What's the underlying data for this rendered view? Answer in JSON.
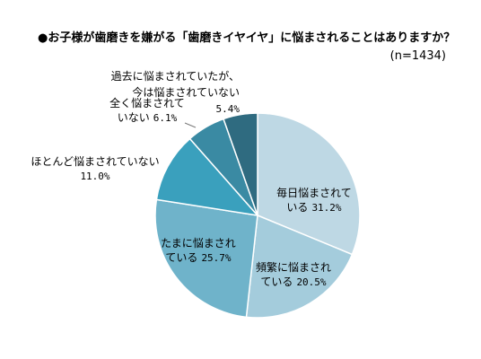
{
  "chart_data": {
    "type": "pie",
    "title": "●お子様が歯磨きを嫌がる「歯磨きイヤイヤ」に悩まされることはありますか？",
    "subtitle": "(n=1434)",
    "start": "12 o'clock, clockwise",
    "slices": [
      {
        "label_lines": [
          "毎日悩まされて",
          "いる"
        ],
        "value_text": "31.2%",
        "value": 31.2,
        "color": "#bed8e4"
      },
      {
        "label_lines": [
          "頻繁に悩まされ",
          "ている"
        ],
        "value_text": "20.5%",
        "value": 20.5,
        "color": "#a4ccdc"
      },
      {
        "label_lines": [
          "たまに悩まされ",
          "ている"
        ],
        "value_text": "25.7%",
        "value": 25.7,
        "color": "#6fb3ca"
      },
      {
        "label_lines": [
          "ほとんど悩まされていない"
        ],
        "value_text": "11.0%",
        "value": 11.0,
        "color": "#3aa0bd"
      },
      {
        "label_lines": [
          "全く悩まされて",
          "いない"
        ],
        "value_text": "6.1%",
        "value": 6.1,
        "color": "#3a8aa3"
      },
      {
        "label_lines": [
          "過去に悩まされていたが、",
          "今は悩まされていない"
        ],
        "value_text": "5.4%",
        "value": 5.4,
        "color": "#2f6b80"
      }
    ],
    "slice_border_color": "#ffffff",
    "leader_line_color": "#7a7a7a"
  }
}
